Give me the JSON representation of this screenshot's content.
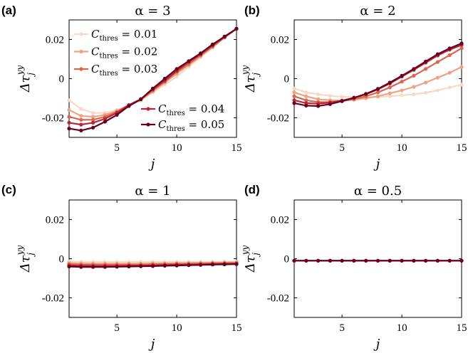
{
  "chart_data": [
    {
      "type": "line",
      "panel_label": "(a)",
      "title": "α = 3",
      "xlabel": "j",
      "ylabel": "Δτ_j^yy",
      "xlim": [
        1,
        15
      ],
      "ylim": [
        -0.03,
        0.03
      ],
      "xticks": [
        "5",
        "10",
        "15"
      ],
      "yticks": [
        "0.02",
        "0",
        "-0.02"
      ],
      "x": [
        1,
        2,
        3,
        4,
        5,
        6,
        7,
        8,
        9,
        10,
        11,
        12,
        13,
        14,
        15
      ],
      "series": [
        {
          "name": "C_thres = 0.01",
          "color": "#f7d9c8",
          "values": [
            -0.011,
            -0.0155,
            -0.0175,
            -0.0175,
            -0.016,
            -0.014,
            -0.011,
            -0.007,
            -0.003,
            0.001,
            0.006,
            0.011,
            0.016,
            0.021,
            0.0255
          ]
        },
        {
          "name": "C_thres = 0.02",
          "color": "#eda384",
          "values": [
            -0.016,
            -0.019,
            -0.0195,
            -0.0185,
            -0.0165,
            -0.0135,
            -0.011,
            -0.0065,
            -0.002,
            0.0025,
            0.007,
            0.0115,
            0.016,
            0.021,
            0.0255
          ]
        },
        {
          "name": "C_thres = 0.03",
          "color": "#d9674f",
          "values": [
            -0.0195,
            -0.021,
            -0.021,
            -0.0195,
            -0.017,
            -0.0135,
            -0.0105,
            -0.006,
            -0.0015,
            0.0035,
            0.0075,
            0.012,
            0.0165,
            0.021,
            0.0255
          ]
        },
        {
          "name": "C_thres = 0.04",
          "color": "#b92639",
          "values": [
            -0.0225,
            -0.0235,
            -0.0225,
            -0.0205,
            -0.0175,
            -0.0135,
            -0.0105,
            -0.0055,
            -0.001,
            0.004,
            0.0085,
            0.0125,
            0.017,
            0.0215,
            0.0255
          ]
        },
        {
          "name": "C_thres = 0.05",
          "color": "#67001f",
          "values": [
            -0.0255,
            -0.0265,
            -0.025,
            -0.022,
            -0.0185,
            -0.014,
            -0.0105,
            -0.005,
            0.0,
            0.005,
            0.009,
            0.013,
            0.0175,
            0.0215,
            0.0255
          ]
        }
      ],
      "legend": {
        "group1": [
          "C_thres = 0.01",
          "C_thres = 0.02",
          "C_thres = 0.03"
        ],
        "group2": [
          "C_thres = 0.04",
          "C_thres = 0.05"
        ]
      }
    },
    {
      "type": "line",
      "panel_label": "(b)",
      "title": "α = 2",
      "xlabel": "j",
      "ylabel": "Δτ_j^yy",
      "xlim": [
        1,
        15
      ],
      "ylim": [
        -0.03,
        0.03
      ],
      "xticks": [
        "5",
        "10",
        "15"
      ],
      "yticks": [
        "0.02",
        "0",
        "-0.02"
      ],
      "x": [
        1,
        2,
        3,
        4,
        5,
        6,
        7,
        8,
        9,
        10,
        11,
        12,
        13,
        14,
        15
      ],
      "series": [
        {
          "name": "C_thres = 0.01",
          "color": "#f7d9c8",
          "values": [
            -0.005,
            -0.007,
            -0.008,
            -0.0088,
            -0.0092,
            -0.0095,
            -0.0095,
            -0.0093,
            -0.009,
            -0.0085,
            -0.008,
            -0.0072,
            -0.006,
            -0.0045,
            -0.003
          ]
        },
        {
          "name": "C_thres = 0.02",
          "color": "#eda384",
          "values": [
            -0.007,
            -0.009,
            -0.0105,
            -0.011,
            -0.0112,
            -0.0108,
            -0.01,
            -0.009,
            -0.0075,
            -0.006,
            -0.0042,
            -0.002,
            0.0005,
            0.003,
            0.006
          ]
        },
        {
          "name": "C_thres = 0.03",
          "color": "#d9674f",
          "values": [
            -0.009,
            -0.011,
            -0.012,
            -0.012,
            -0.0115,
            -0.0105,
            -0.009,
            -0.007,
            -0.0045,
            -0.0015,
            0.0015,
            0.005,
            0.0085,
            0.012,
            0.0155
          ]
        },
        {
          "name": "C_thres = 0.04",
          "color": "#b92639",
          "values": [
            -0.011,
            -0.0125,
            -0.0128,
            -0.0122,
            -0.0112,
            -0.0098,
            -0.008,
            -0.0055,
            -0.0025,
            0.001,
            0.0045,
            0.0082,
            0.0118,
            0.0148,
            0.0172
          ]
        },
        {
          "name": "C_thres = 0.05",
          "color": "#67001f",
          "values": [
            -0.0125,
            -0.0138,
            -0.014,
            -0.013,
            -0.0115,
            -0.0098,
            -0.0078,
            -0.0052,
            -0.002,
            0.0015,
            0.005,
            0.0088,
            0.0125,
            0.0155,
            0.018
          ]
        }
      ]
    },
    {
      "type": "line",
      "panel_label": "(c)",
      "title": "α = 1",
      "xlabel": "j",
      "ylabel": "Δτ_j^yy",
      "xlim": [
        1,
        15
      ],
      "ylim": [
        -0.03,
        0.03
      ],
      "xticks": [
        "5",
        "10",
        "15"
      ],
      "yticks": [
        "0.02",
        "0",
        "-0.02"
      ],
      "x": [
        1,
        2,
        3,
        4,
        5,
        6,
        7,
        8,
        9,
        10,
        11,
        12,
        13,
        14,
        15
      ],
      "series": [
        {
          "name": "C_thres = 0.01",
          "color": "#f7d9c8",
          "values": [
            -0.0015,
            -0.0016,
            -0.0016,
            -0.0016,
            -0.0016,
            -0.0016,
            -0.0016,
            -0.0016,
            -0.0016,
            -0.0016,
            -0.0016,
            -0.0016,
            -0.0016,
            -0.0016,
            -0.0016
          ]
        },
        {
          "name": "C_thres = 0.02",
          "color": "#eda384",
          "values": [
            -0.0022,
            -0.0024,
            -0.0025,
            -0.0025,
            -0.0025,
            -0.0025,
            -0.0025,
            -0.0024,
            -0.0024,
            -0.0023,
            -0.0022,
            -0.0021,
            -0.002,
            -0.0019,
            -0.0018
          ]
        },
        {
          "name": "C_thres = 0.03",
          "color": "#d9674f",
          "values": [
            -0.0028,
            -0.003,
            -0.0031,
            -0.0031,
            -0.0031,
            -0.0031,
            -0.003,
            -0.0029,
            -0.0028,
            -0.0027,
            -0.0026,
            -0.0025,
            -0.0024,
            -0.0023,
            -0.0022
          ]
        },
        {
          "name": "C_thres = 0.04",
          "color": "#b92639",
          "values": [
            -0.0034,
            -0.0036,
            -0.0037,
            -0.0037,
            -0.0037,
            -0.0036,
            -0.0035,
            -0.0034,
            -0.0033,
            -0.0031,
            -0.003,
            -0.0029,
            -0.0027,
            -0.0026,
            -0.0025
          ]
        },
        {
          "name": "C_thres = 0.05",
          "color": "#67001f",
          "values": [
            -0.004,
            -0.0042,
            -0.0042,
            -0.0042,
            -0.0041,
            -0.004,
            -0.0039,
            -0.0038,
            -0.0036,
            -0.0035,
            -0.0033,
            -0.0032,
            -0.003,
            -0.0029,
            -0.0028
          ]
        }
      ]
    },
    {
      "type": "line",
      "panel_label": "(d)",
      "title": "α = 0.5",
      "xlabel": "j",
      "ylabel": "Δτ_j^yy",
      "xlim": [
        1,
        15
      ],
      "ylim": [
        -0.03,
        0.03
      ],
      "xticks": [
        "5",
        "10",
        "15"
      ],
      "yticks": [
        "0.02",
        "0",
        "-0.02"
      ],
      "x": [
        1,
        2,
        3,
        4,
        5,
        6,
        7,
        8,
        9,
        10,
        11,
        12,
        13,
        14,
        15
      ],
      "series": [
        {
          "name": "C_thres = 0.01",
          "color": "#f7d9c8",
          "values": [
            -0.001,
            -0.001,
            -0.001,
            -0.001,
            -0.001,
            -0.001,
            -0.001,
            -0.001,
            -0.001,
            -0.001,
            -0.001,
            -0.001,
            -0.001,
            -0.001,
            -0.001
          ]
        },
        {
          "name": "C_thres = 0.02",
          "color": "#eda384",
          "values": [
            -0.001,
            -0.001,
            -0.001,
            -0.001,
            -0.001,
            -0.001,
            -0.001,
            -0.001,
            -0.001,
            -0.001,
            -0.001,
            -0.001,
            -0.001,
            -0.001,
            -0.001
          ]
        },
        {
          "name": "C_thres = 0.03",
          "color": "#d9674f",
          "values": [
            -0.001,
            -0.001,
            -0.001,
            -0.001,
            -0.001,
            -0.001,
            -0.001,
            -0.001,
            -0.001,
            -0.001,
            -0.001,
            -0.001,
            -0.001,
            -0.001,
            -0.001
          ]
        },
        {
          "name": "C_thres = 0.04",
          "color": "#b92639",
          "values": [
            -0.001,
            -0.001,
            -0.001,
            -0.001,
            -0.001,
            -0.001,
            -0.001,
            -0.001,
            -0.001,
            -0.001,
            -0.001,
            -0.001,
            -0.001,
            -0.001,
            -0.001
          ]
        },
        {
          "name": "C_thres = 0.05",
          "color": "#67001f",
          "values": [
            -0.001,
            -0.001,
            -0.001,
            -0.001,
            -0.001,
            -0.001,
            -0.001,
            -0.001,
            -0.001,
            -0.001,
            -0.001,
            -0.001,
            -0.001,
            -0.001,
            -0.001
          ]
        }
      ]
    }
  ]
}
